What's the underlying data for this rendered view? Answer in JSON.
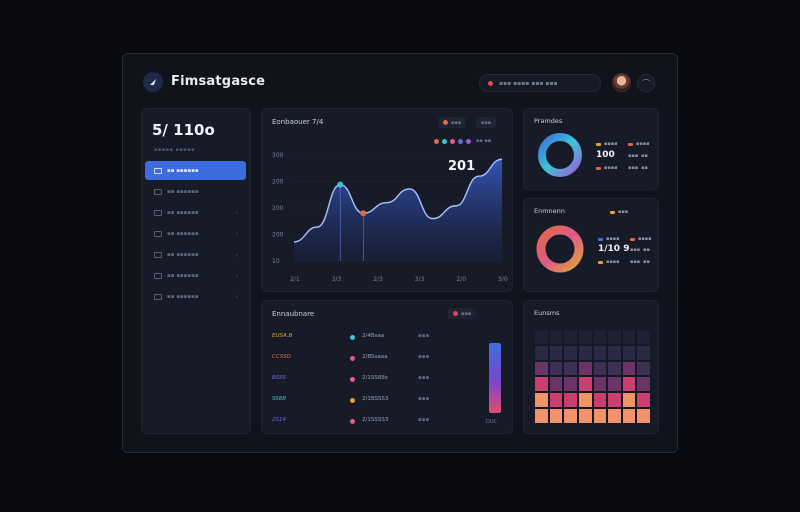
{
  "app": {
    "brand": "Fimsatgasce"
  },
  "topbar": {
    "pill_text": "▪▪▪ ▪▪▪▪ ▪▪▪ ▪▪▪"
  },
  "sidebar": {
    "big_value": "5/ 110o",
    "sub_label": "▪▪▪▪▪ ▪▪▪▪▪",
    "items": [
      {
        "label": "▪▪ ▪▪▪▪▪▪",
        "active": true
      },
      {
        "label": "▪▪ ▪▪▪▪▪▪",
        "active": false
      },
      {
        "label": "▪▪ ▪▪▪▪▪▪",
        "active": false
      },
      {
        "label": "▪▪ ▪▪▪▪▪▪",
        "active": false
      },
      {
        "label": "▪▪ ▪▪▪▪▪▪",
        "active": false
      },
      {
        "label": "▪▪ ▪▪▪▪▪▪",
        "active": false
      },
      {
        "label": "▪▪ ▪▪▪▪▪▪",
        "active": false
      }
    ]
  },
  "main_chart": {
    "title": "Eonbaouer 7/4",
    "legend": [
      "#e0684a",
      "#3cc6d6",
      "#e05a8a",
      "#6b6bd9",
      "#9a5fd6"
    ],
    "legend_label": "▪▪ ▪▪",
    "toggle_a": "▪▪▪",
    "toggle_b": "▪▪▪",
    "peak_label": "201",
    "chart_data": {
      "type": "area",
      "y_ticks": [
        "300",
        "200",
        "200",
        "200",
        "10"
      ],
      "x_ticks": [
        "2/1",
        "3/3",
        "2/3",
        "3/3",
        "2/0",
        "3/0"
      ],
      "values": [
        0.18,
        0.32,
        0.72,
        0.45,
        0.55,
        0.68,
        0.4,
        0.52,
        0.8,
        0.96
      ],
      "markers": [
        {
          "index": 2,
          "color": "#3cc6d6"
        },
        {
          "index": 3,
          "color": "#e0684a"
        }
      ],
      "ylim": [
        0,
        1
      ]
    }
  },
  "donut_a": {
    "title": "Pramdes",
    "legend": [
      {
        "label": "▪▪▪▪",
        "color": "#e0a13a"
      },
      {
        "label": "▪▪▪▪",
        "color": "#e0684a"
      },
      {
        "label": "▪▪▪▪",
        "color": "#e0684a"
      }
    ],
    "big_value": "100",
    "values": [
      {
        "label": "▪▪▪",
        "value": "▪▪"
      },
      {
        "label": "▪▪▪",
        "value": "▪▪"
      }
    ]
  },
  "donut_b": {
    "title": "Enmnenn",
    "badge": "▪▪▪",
    "legend": [
      {
        "label": "▪▪▪▪",
        "color": "#3f6fe0"
      },
      {
        "label": "▪▪▪▪",
        "color": "#e0684a"
      },
      {
        "label": "▪▪▪▪",
        "color": "#e0a13a"
      }
    ],
    "big_value": "1/10 9",
    "values": [
      {
        "label": "▪▪▪",
        "value": "▪▪"
      },
      {
        "label": "▪▪▪",
        "value": "▪▪"
      }
    ]
  },
  "table": {
    "title": "Ennaubnare",
    "toggle": "▪▪▪",
    "rows": [
      {
        "name": "EUSA.B",
        "name_color": "#e0a13a",
        "dot": "#3cc6d6",
        "val": "2/4Bsaa",
        "extra": "▪▪▪"
      },
      {
        "name": "CCSSD",
        "name_color": "#e0684a",
        "dot": "#e05a8a",
        "val": "2/BSsaaa",
        "extra": "▪▪▪"
      },
      {
        "name": "BSSS",
        "name_color": "#6b6bd9",
        "dot": "#e05a8a",
        "val": "2/1SS88s",
        "extra": "▪▪▪"
      },
      {
        "name": "SS8B",
        "name_color": "#3cc6d6",
        "dot": "#e0a13a",
        "val": "2/1BSSS3",
        "extra": "▪▪▪"
      },
      {
        "name": "2S14",
        "name_color": "#6b6bd9",
        "dot": "#e05a8a",
        "val": "2/1SSSS3",
        "extra": "▪▪▪"
      }
    ],
    "bar_label": "DUC"
  },
  "heatmap": {
    "title": "Eunsms",
    "rows": 6,
    "cols": 8,
    "colors": [
      "#1e2233",
      "#2a2a45",
      "#3e2f55",
      "#6a3466",
      "#c9406f",
      "#f2946a"
    ]
  }
}
